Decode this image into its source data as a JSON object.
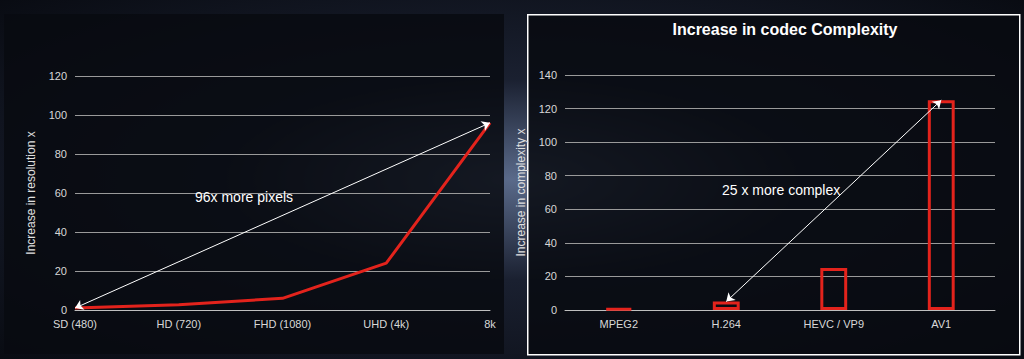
{
  "chart_data": [
    {
      "type": "line",
      "y_label": "Increase in resolution x",
      "categories": [
        "SD (480)",
        "HD (720)",
        "FHD (1080)",
        "UHD (4k)",
        "8k"
      ],
      "values": [
        1,
        2.67,
        6,
        24,
        96
      ],
      "color": "#e3231c",
      "marker": "none",
      "ylim": [
        0,
        120
      ],
      "yticks": [
        0,
        20,
        40,
        60,
        80,
        100,
        120
      ],
      "grid": true,
      "annotation": {
        "text": "96x more pixels",
        "from": "SD (480)",
        "to": "8k"
      }
    },
    {
      "type": "bar",
      "title": "Increase in codec Complexity",
      "y_label": "Increase in complexity x",
      "categories": [
        "MPEG2",
        "H.264",
        "HEVC / VP9",
        "AV1"
      ],
      "values": [
        1,
        5,
        25,
        125
      ],
      "color": "#e3231c",
      "ylim": [
        0,
        140
      ],
      "yticks": [
        0,
        20,
        40,
        60,
        80,
        100,
        120,
        140
      ],
      "grid": true,
      "annotation": {
        "text": "25 x more complex",
        "from": "H.264",
        "to": "AV1"
      }
    }
  ]
}
